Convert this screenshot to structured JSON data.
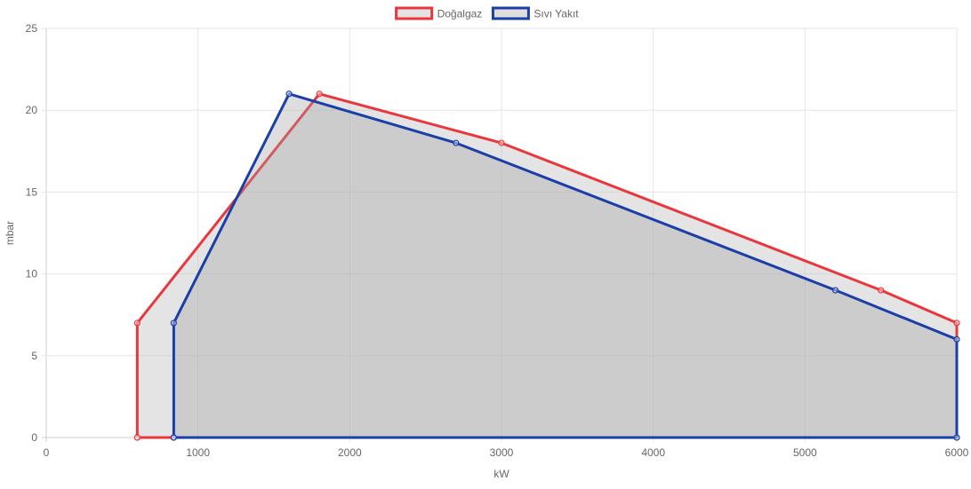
{
  "chart_data": {
    "type": "area",
    "xlabel": "kW",
    "ylabel": "mbar",
    "xlim": [
      0,
      6000
    ],
    "ylim": [
      0,
      25
    ],
    "x_ticks": [
      0,
      1000,
      2000,
      3000,
      4000,
      5000,
      6000
    ],
    "y_ticks": [
      0,
      5,
      10,
      15,
      20,
      25
    ],
    "grid": true,
    "legend_position": "top-center",
    "series": [
      {
        "name": "Doğalgaz",
        "color": "#e8383d",
        "fill": "rgba(195,195,195,0.45)",
        "points": [
          [
            600,
            0
          ],
          [
            600,
            7
          ],
          [
            1800,
            21
          ],
          [
            3000,
            18
          ],
          [
            5500,
            9
          ],
          [
            6000,
            7
          ],
          [
            6000,
            0
          ],
          [
            600,
            0
          ]
        ]
      },
      {
        "name": "Sıvı Yakıt",
        "color": "#1b3fa8",
        "fill": "rgba(160,160,160,0.35)",
        "points": [
          [
            840,
            0
          ],
          [
            840,
            7
          ],
          [
            1600,
            21
          ],
          [
            2700,
            18
          ],
          [
            5200,
            9
          ],
          [
            6000,
            6
          ],
          [
            6000,
            0
          ],
          [
            840,
            0
          ]
        ]
      }
    ]
  }
}
